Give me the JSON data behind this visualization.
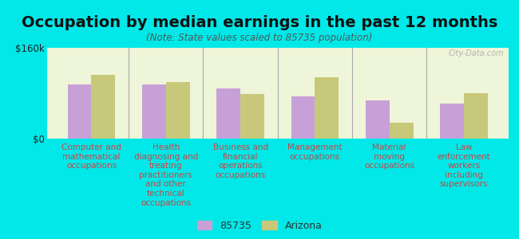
{
  "title": "Occupation by median earnings in the past 12 months",
  "subtitle": "(Note: State values scaled to 85735 population)",
  "categories": [
    "Computer and\nmathematical\noccupations",
    "Health\ndiagnosing and\ntreating\npractitioners\nand other\ntechnical\noccupations",
    "Business and\nfinancial\noperations\noccupations",
    "Management\noccupations",
    "Material\nmoving\noccupations",
    "Law\nenforcement\nworkers\nincluding\nsupervisors"
  ],
  "values_85735": [
    95000,
    95000,
    88000,
    75000,
    68000,
    62000
  ],
  "values_arizona": [
    112000,
    100000,
    78000,
    108000,
    28000,
    80000
  ],
  "color_85735": "#c8a0d8",
  "color_arizona": "#c8c87a",
  "background_plot": "#eef5d8",
  "background_fig": "#00e8e8",
  "ylim": [
    0,
    160000
  ],
  "ytick_labels": [
    "$0",
    "$160k"
  ],
  "bar_width": 0.32,
  "legend_label_85735": "85735",
  "legend_label_arizona": "Arizona",
  "watermark": "City-Data.com",
  "title_fontsize": 14,
  "subtitle_fontsize": 8.5,
  "xlabel_fontsize": 7.5,
  "ytick_fontsize": 8.5
}
